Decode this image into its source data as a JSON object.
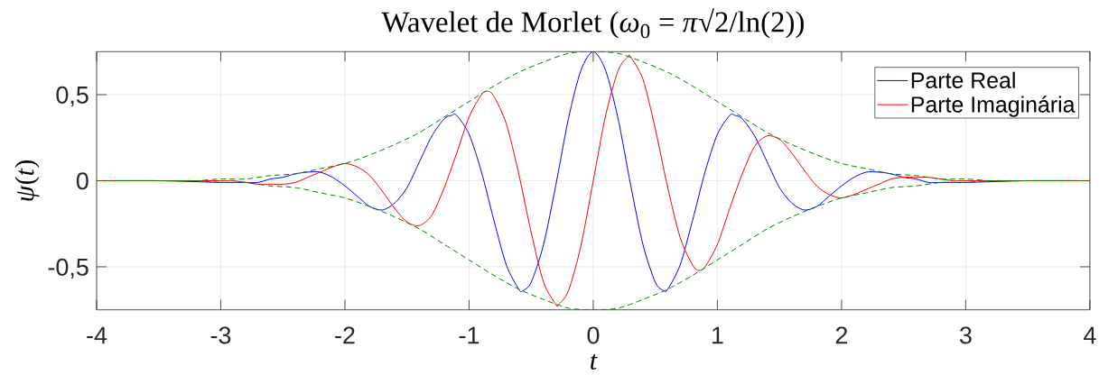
{
  "chart_data": {
    "type": "line",
    "title": "Wavelet de Morlet (*ω*$_{0}$ = *π*√2/ln(2))",
    "xlabel": "t",
    "ylabel": "*ψ*(*t*)",
    "xlim": [
      -4,
      4
    ],
    "ylim": [
      -0.75,
      0.75
    ],
    "xticks": [
      -4,
      -3,
      -2,
      -1,
      0,
      1,
      2,
      3,
      4
    ],
    "yticks": [
      {
        "value": -0.5,
        "label": "-0,5"
      },
      0,
      {
        "value": 0.5,
        "label": "0,5"
      }
    ],
    "grid": true,
    "legend": "top right",
    "series": [
      {
        "name": "Parte Real",
        "color": "#0000ff",
        "x": [
          -4,
          -3.5,
          -3,
          -2.9,
          -2.8,
          -2.7,
          -2.6,
          -2.5,
          -2.4,
          -2.3,
          -2.2,
          -2.1,
          -2,
          -1.9,
          -1.8,
          -1.7,
          -1.6,
          -1.5,
          -1.4,
          -1.3,
          -1.2,
          -1.14,
          -1.1,
          -1,
          -0.9,
          -0.8,
          -0.7,
          -0.6,
          -0.57,
          -0.5,
          -0.4,
          -0.3,
          -0.2,
          -0.1,
          0,
          0.1,
          0.2,
          0.3,
          0.4,
          0.5,
          0.57,
          0.6,
          0.7,
          0.8,
          0.9,
          1,
          1.1,
          1.14,
          1.2,
          1.3,
          1.4,
          1.5,
          1.6,
          1.7,
          1.8,
          1.9,
          2,
          2.1,
          2.2,
          2.3,
          2.4,
          2.5,
          2.6,
          2.7,
          2.8,
          2.9,
          3,
          3.5,
          4
        ],
        "values": [
          0,
          0,
          -0.01,
          -0.01,
          -0.01,
          -0.01,
          0.01,
          0.02,
          0.04,
          0.05,
          0.05,
          0.02,
          -0.03,
          -0.09,
          -0.15,
          -0.17,
          -0.13,
          -0.04,
          0.11,
          0.26,
          0.36,
          0.38,
          0.38,
          0.27,
          0.05,
          -0.23,
          -0.49,
          -0.63,
          -0.64,
          -0.59,
          -0.37,
          -0.02,
          0.36,
          0.64,
          0.75,
          0.64,
          0.36,
          -0.02,
          -0.37,
          -0.59,
          -0.64,
          -0.63,
          -0.49,
          -0.23,
          0.05,
          0.27,
          0.38,
          0.38,
          0.36,
          0.26,
          0.11,
          -0.04,
          -0.13,
          -0.17,
          -0.15,
          -0.09,
          -0.03,
          0.02,
          0.05,
          0.05,
          0.04,
          0.02,
          0.01,
          -0.01,
          -0.01,
          -0.01,
          -0.01,
          0,
          0
        ]
      },
      {
        "name": "Parte Imaginária",
        "color": "#ff0000",
        "x": [
          -4,
          -3.5,
          -3,
          -2.9,
          -2.8,
          -2.7,
          -2.6,
          -2.5,
          -2.4,
          -2.3,
          -2.2,
          -2.1,
          -2,
          -1.9,
          -1.8,
          -1.7,
          -1.6,
          -1.5,
          -1.4,
          -1.3,
          -1.2,
          -1.1,
          -1,
          -0.9,
          -0.85,
          -0.8,
          -0.7,
          -0.6,
          -0.5,
          -0.4,
          -0.3,
          -0.28,
          -0.2,
          -0.1,
          0,
          0.1,
          0.2,
          0.28,
          0.3,
          0.4,
          0.5,
          0.6,
          0.7,
          0.8,
          0.85,
          0.9,
          1,
          1.1,
          1.2,
          1.3,
          1.4,
          1.5,
          1.6,
          1.7,
          1.8,
          1.9,
          2,
          2.1,
          2.2,
          2.3,
          2.4,
          2.5,
          2.6,
          2.7,
          2.8,
          2.9,
          3,
          3.5,
          4
        ],
        "values": [
          0,
          0,
          0,
          0,
          -0.01,
          -0.02,
          -0.02,
          -0.02,
          -0.01,
          0.02,
          0.05,
          0.08,
          0.1,
          0.08,
          0.03,
          -0.06,
          -0.16,
          -0.24,
          -0.26,
          -0.2,
          -0.04,
          0.16,
          0.37,
          0.5,
          0.52,
          0.49,
          0.33,
          0.04,
          -0.3,
          -0.59,
          -0.72,
          -0.72,
          -0.64,
          -0.38,
          0,
          0.38,
          0.64,
          0.72,
          0.72,
          0.59,
          0.3,
          -0.04,
          -0.33,
          -0.49,
          -0.52,
          -0.5,
          -0.37,
          -0.16,
          0.04,
          0.2,
          0.26,
          0.24,
          0.16,
          0.06,
          -0.03,
          -0.08,
          -0.1,
          -0.08,
          -0.05,
          -0.02,
          0.01,
          0.02,
          0.02,
          0.02,
          0.01,
          0,
          0,
          0,
          0
        ]
      },
      {
        "color": "#008000",
        "line_style": "dashed",
        "x": [
          -3.8,
          -3.6,
          -3.4,
          -3.2,
          -3,
          -2.8,
          -2.6,
          -2.4,
          -2.2,
          -2,
          -1.8,
          -1.6,
          -1.4,
          -1.2,
          -1,
          -0.8,
          -0.6,
          -0.4,
          -0.2,
          0,
          0.2,
          0.4,
          0.6,
          0.8,
          1,
          1.2,
          1.4,
          1.6,
          1.8,
          2,
          2.2,
          2.4,
          2.6,
          2.8,
          3,
          3.2,
          3.4,
          3.6,
          3.8
        ],
        "values": [
          0,
          0,
          0,
          0,
          0.01,
          0.01,
          0.03,
          0.04,
          0.07,
          0.1,
          0.15,
          0.21,
          0.28,
          0.37,
          0.46,
          0.55,
          0.63,
          0.69,
          0.74,
          0.75,
          0.74,
          0.69,
          0.63,
          0.55,
          0.46,
          0.37,
          0.28,
          0.21,
          0.15,
          0.1,
          0.07,
          0.04,
          0.03,
          0.01,
          0.01,
          0,
          0,
          0,
          0
        ]
      },
      {
        "color": "#008000",
        "line_style": "dashed",
        "x": [
          -4,
          -3.8,
          -3.6,
          -3.4,
          -3.2,
          -3,
          -2.8,
          -2.6,
          -2.4,
          -2.2,
          -2,
          -1.8,
          -1.6,
          -1.4,
          -1.2,
          -1,
          -0.8,
          -0.6,
          -0.4,
          -0.2,
          0,
          0.2,
          0.4,
          0.6,
          0.8,
          1,
          1.2,
          1.4,
          1.6,
          1.8,
          2,
          2.2,
          2.4,
          2.6,
          2.8,
          3,
          3.2,
          3.4,
          3.6,
          3.8,
          4
        ],
        "values": [
          0,
          0,
          0,
          0,
          0,
          -0.01,
          -0.01,
          -0.03,
          -0.04,
          -0.07,
          -0.1,
          -0.15,
          -0.21,
          -0.28,
          -0.37,
          -0.46,
          -0.55,
          -0.63,
          -0.69,
          -0.74,
          -0.75,
          -0.74,
          -0.69,
          -0.63,
          -0.55,
          -0.46,
          -0.37,
          -0.28,
          -0.21,
          -0.15,
          -0.1,
          -0.07,
          -0.04,
          -0.03,
          -0.01,
          -0.01,
          0,
          0,
          0,
          0,
          0
        ]
      }
    ]
  }
}
